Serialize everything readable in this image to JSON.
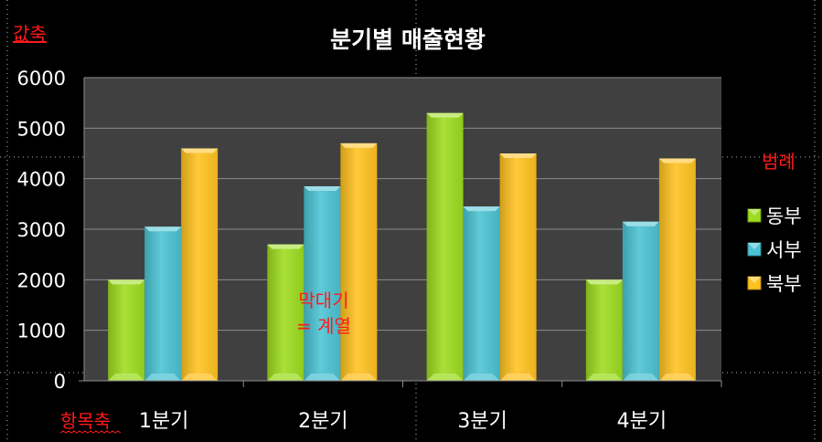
{
  "annotations": {
    "value_axis": "값축",
    "category_axis": "항목축",
    "legend": "범례",
    "bar_note_line1": "막대기",
    "bar_note_line2": "= 계열"
  },
  "colors": {
    "background": "#000000",
    "plot_area": "#404040",
    "gridline": "#8c8c8c",
    "annotation": "#ff1a1a"
  },
  "chart_data": {
    "type": "bar",
    "title": "분기별 매출현황",
    "categories": [
      "1분기",
      "2분기",
      "3분기",
      "4분기"
    ],
    "series": [
      {
        "name": "동부",
        "values": [
          2000,
          2700,
          5300,
          2000
        ],
        "color": "#9ddc1e"
      },
      {
        "name": "서부",
        "values": [
          3050,
          3850,
          3450,
          3150
        ],
        "color": "#4ac3d3"
      },
      {
        "name": "북부",
        "values": [
          4600,
          4700,
          4500,
          4400
        ],
        "color": "#ffc21f"
      }
    ],
    "ylim": [
      0,
      6000
    ],
    "yticks": [
      "0",
      "1000",
      "2000",
      "3000",
      "4000",
      "5000",
      "6000"
    ],
    "xlabel": "",
    "ylabel": "",
    "grid": true,
    "legend_position": "right"
  }
}
